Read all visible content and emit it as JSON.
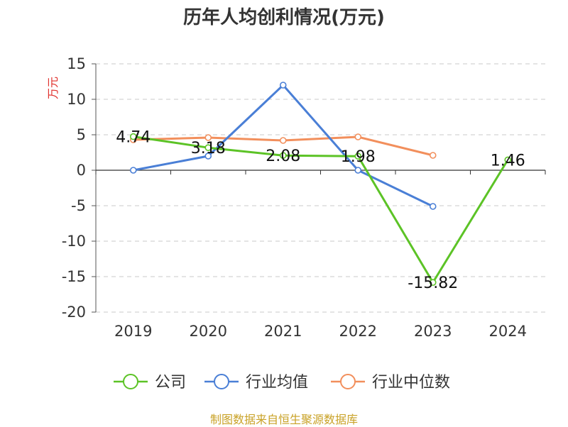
{
  "title": "历年人均创利情况(万元)",
  "source": "制图数据来自恒生聚源数据库",
  "colors": {
    "company": "#5cc326",
    "industry_avg": "#4a7fd6",
    "industry_median": "#f28f5c",
    "grid": "#c8c8c8",
    "ylabel": "#e0312d"
  },
  "chart_data": {
    "type": "line",
    "title": "历年人均创利情况(万元)",
    "ylabel": "万元",
    "xlabel": "",
    "x": [
      "2019",
      "2020",
      "2021",
      "2022",
      "2023",
      "2024"
    ],
    "ylim": [
      -20,
      15
    ],
    "yticks": [
      "15",
      "10",
      "5",
      "0",
      "-5",
      "-10",
      "-15",
      "-20"
    ],
    "grid": true,
    "legend": "bottom",
    "series": [
      {
        "name": "公司",
        "values": [
          4.74,
          3.18,
          2.08,
          1.98,
          -15.82,
          1.46
        ],
        "labels": [
          "4.74",
          "3.18",
          "2.08",
          "1.98",
          "-15.82",
          "1.46"
        ]
      },
      {
        "name": "行业均值",
        "values": [
          0.0,
          2.0,
          12.0,
          0.0,
          -5.1,
          null
        ]
      },
      {
        "name": "行业中位数",
        "values": [
          4.3,
          4.6,
          4.2,
          4.7,
          2.1,
          null
        ]
      }
    ]
  }
}
